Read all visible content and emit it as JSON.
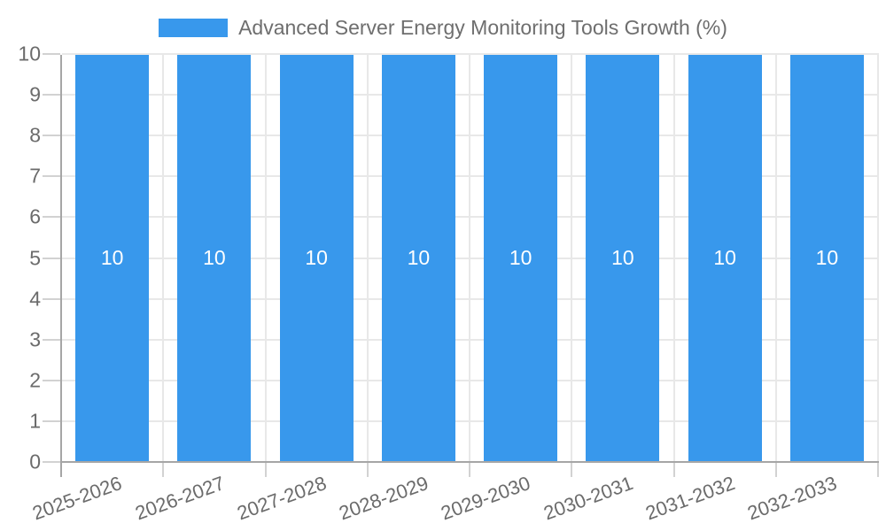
{
  "chart_data": {
    "type": "bar",
    "title": "Advanced Server Energy Monitoring Tools Growth (%)",
    "categories": [
      "2025-2026",
      "2026-2027",
      "2027-2028",
      "2028-2029",
      "2029-2030",
      "2030-2031",
      "2031-2032",
      "2032-2033"
    ],
    "series": [
      {
        "name": "Advanced Server Energy Monitoring Tools Growth (%)",
        "values": [
          10,
          10,
          10,
          10,
          10,
          10,
          10,
          10
        ]
      }
    ],
    "bar_value_labels": [
      "10",
      "10",
      "10",
      "10",
      "10",
      "10",
      "10",
      "10"
    ],
    "xlabel": "",
    "ylabel": "",
    "ylim": [
      0,
      10
    ],
    "yticks": [
      0,
      1,
      2,
      3,
      4,
      5,
      6,
      7,
      8,
      9,
      10
    ],
    "grid": true,
    "legend_position": "top",
    "x_tick_rotation_deg": -20,
    "colors": {
      "bar": "#3898ec",
      "title_text": "#6e6e6e",
      "tick_text": "#6b6b6b",
      "axis_line": "#a6a6a6",
      "grid_line": "#e8e8e8",
      "tick_line": "#d2d2d2",
      "bar_label_text": "#ffffff",
      "background": "#ffffff"
    }
  }
}
